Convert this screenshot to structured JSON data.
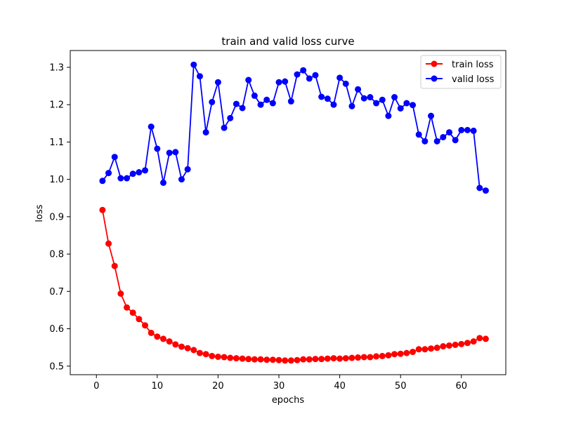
{
  "chart_data": {
    "type": "line",
    "title": "train and valid loss curve",
    "xlabel": "epochs",
    "ylabel": "loss",
    "xlim": [
      -4.3,
      67.3
    ],
    "ylim": [
      0.477,
      1.345
    ],
    "xticks": [
      0,
      10,
      20,
      30,
      40,
      50,
      60
    ],
    "yticks": [
      0.5,
      0.6,
      0.7,
      0.8,
      0.9,
      1.0,
      1.1,
      1.2,
      1.3
    ],
    "xtick_labels": [
      "0",
      "10",
      "20",
      "30",
      "40",
      "50",
      "60"
    ],
    "ytick_labels": [
      "0.5",
      "0.6",
      "0.7",
      "0.8",
      "0.9",
      "1.0",
      "1.1",
      "1.2",
      "1.3"
    ],
    "grid": false,
    "legend_position": "top-right",
    "x": [
      1,
      2,
      3,
      4,
      5,
      6,
      7,
      8,
      9,
      10,
      11,
      12,
      13,
      14,
      15,
      16,
      17,
      18,
      19,
      20,
      21,
      22,
      23,
      24,
      25,
      26,
      27,
      28,
      29,
      30,
      31,
      32,
      33,
      34,
      35,
      36,
      37,
      38,
      39,
      40,
      41,
      42,
      43,
      44,
      45,
      46,
      47,
      48,
      49,
      50,
      51,
      52,
      53,
      54,
      55,
      56,
      57,
      58,
      59,
      60,
      61,
      62,
      63,
      64
    ],
    "series": [
      {
        "name": "train loss",
        "color": "#ff0000",
        "marker": "circle",
        "values": [
          0.918,
          0.828,
          0.768,
          0.694,
          0.657,
          0.643,
          0.626,
          0.609,
          0.589,
          0.579,
          0.573,
          0.566,
          0.558,
          0.552,
          0.548,
          0.543,
          0.535,
          0.532,
          0.527,
          0.525,
          0.524,
          0.522,
          0.521,
          0.52,
          0.519,
          0.518,
          0.518,
          0.517,
          0.517,
          0.516,
          0.515,
          0.515,
          0.516,
          0.518,
          0.518,
          0.519,
          0.519,
          0.52,
          0.521,
          0.52,
          0.521,
          0.522,
          0.523,
          0.524,
          0.524,
          0.526,
          0.527,
          0.529,
          0.532,
          0.533,
          0.535,
          0.538,
          0.545,
          0.545,
          0.547,
          0.549,
          0.553,
          0.555,
          0.557,
          0.559,
          0.562,
          0.566,
          0.575,
          0.573
        ]
      },
      {
        "name": "valid loss",
        "color": "#0000ff",
        "marker": "circle",
        "values": [
          0.996,
          1.017,
          1.06,
          1.003,
          1.003,
          1.015,
          1.019,
          1.024,
          1.141,
          1.082,
          0.991,
          1.071,
          1.073,
          1.0,
          1.027,
          1.307,
          1.276,
          1.126,
          1.207,
          1.26,
          1.138,
          1.164,
          1.202,
          1.191,
          1.266,
          1.224,
          1.2,
          1.213,
          1.204,
          1.26,
          1.262,
          1.209,
          1.281,
          1.292,
          1.27,
          1.279,
          1.221,
          1.216,
          1.2,
          1.272,
          1.256,
          1.196,
          1.241,
          1.217,
          1.22,
          1.204,
          1.213,
          1.17,
          1.22,
          1.19,
          1.204,
          1.199,
          1.12,
          1.102,
          1.17,
          1.102,
          1.113,
          1.126,
          1.105,
          1.132,
          1.132,
          1.13,
          0.977,
          0.97
        ]
      }
    ]
  }
}
